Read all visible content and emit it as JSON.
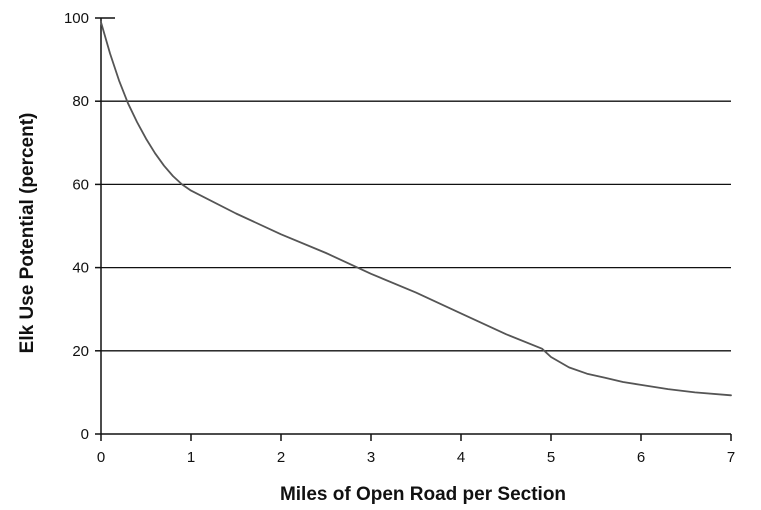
{
  "chart_data": {
    "type": "line",
    "title": "",
    "xlabel": "Miles of Open Road per Section",
    "ylabel": "Elk Use Potential (percent)",
    "xlim": [
      0,
      7
    ],
    "ylim": [
      0,
      100
    ],
    "x_ticks": [
      0,
      1,
      2,
      3,
      4,
      5,
      6,
      7
    ],
    "y_ticks": [
      0,
      20,
      40,
      60,
      80,
      100
    ],
    "grid": "horizontal",
    "legend": "none",
    "series": [
      {
        "x": [
          0,
          0.1,
          0.2,
          0.3,
          0.4,
          0.5,
          0.6,
          0.7,
          0.8,
          0.9,
          1.0,
          1.5,
          2.0,
          2.5,
          3.0,
          3.5,
          4.0,
          4.5,
          4.9,
          5.0,
          5.2,
          5.4,
          5.6,
          5.8,
          6.0,
          6.3,
          6.6,
          7.0
        ],
        "y": [
          99,
          91.5,
          85,
          79.5,
          75,
          71,
          67.5,
          64.5,
          62,
          60,
          58.5,
          53,
          48,
          43.5,
          38.5,
          34,
          29,
          24,
          20.5,
          18.5,
          16,
          14.5,
          13.5,
          12.5,
          11.8,
          10.8,
          10,
          9.3
        ],
        "color": "#555555"
      }
    ],
    "colors": {
      "axis": "#111111",
      "grid": "#111111",
      "line": "#555555"
    }
  }
}
